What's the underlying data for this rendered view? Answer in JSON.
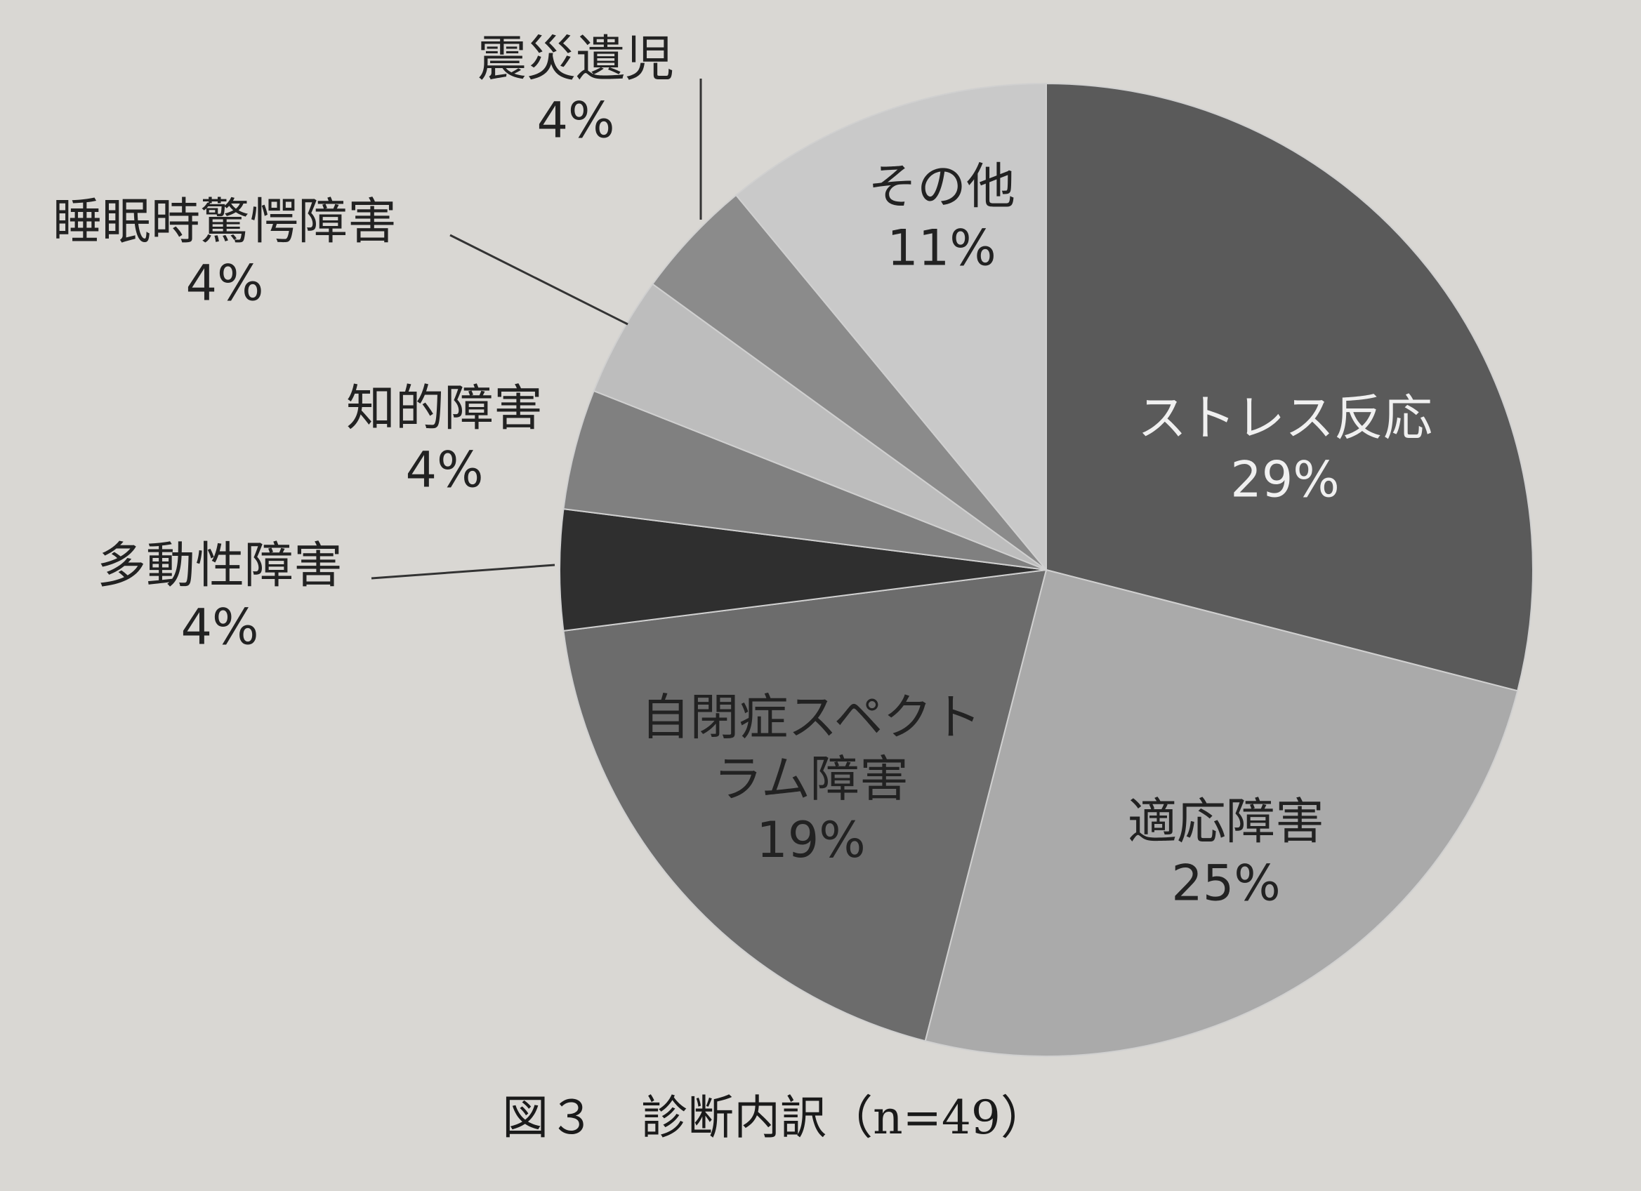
{
  "chart_data": {
    "type": "pie",
    "title": "図３　診断内訳（n=49）",
    "categories": [
      "ストレス反応",
      "適応障害",
      "自閉症スペクトラム障害",
      "多動性障害",
      "知的障害",
      "睡眠時驚愕障害",
      "震災遺児",
      "その他"
    ],
    "values": [
      29,
      25,
      19,
      4,
      4,
      4,
      4,
      11
    ],
    "value_labels": [
      "29%",
      "25%",
      "19%",
      "4%",
      "4%",
      "4%",
      "4%",
      "11%"
    ],
    "colors": [
      "#5a5a5a",
      "#aaaaaa",
      "#6c6c6c",
      "#2f2f2f",
      "#808080",
      "#bdbdbd",
      "#8b8b8b",
      "#c9c9c9"
    ]
  }
}
